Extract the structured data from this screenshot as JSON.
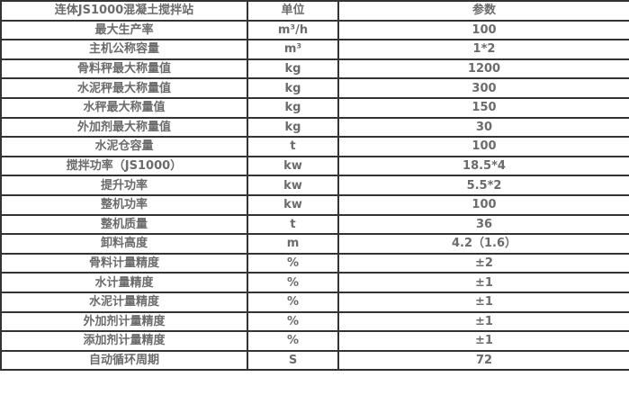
{
  "header": [
    "连体JS1000混凝土搅拌站",
    "单位",
    "参数"
  ],
  "rows": [
    [
      "最大生产率",
      "m³/h",
      "100"
    ],
    [
      "主机公称容量",
      "m³",
      "1*2"
    ],
    [
      "骨料秤最大称量值",
      "kg",
      "1200"
    ],
    [
      "水泥秤最大称量值",
      "kg",
      "300"
    ],
    [
      "水秤最大称量值",
      "kg",
      "150"
    ],
    [
      "外加剂最大称量值",
      "kg",
      "30"
    ],
    [
      "水泥仓容量",
      "t",
      "100"
    ],
    [
      "搅拌功率（JS1000）",
      "kw",
      "18.5*4"
    ],
    [
      "提升功率",
      "kw",
      "5.5*2"
    ],
    [
      "整机功率",
      "kw",
      "100"
    ],
    [
      "整机质量",
      "t",
      "36"
    ],
    [
      "卸料高度",
      "m",
      "4.2（1.6）"
    ],
    [
      "骨料计量精度",
      "%",
      "±2"
    ],
    [
      "水计量精度",
      "%",
      "±1"
    ],
    [
      "水泥计量精度",
      "%",
      "±1"
    ],
    [
      "外加剂计量精度",
      "%",
      "±1"
    ],
    [
      "添加剂计量精度",
      "%",
      "±1"
    ],
    [
      "自动循环周期",
      "S",
      "72"
    ]
  ]
}
